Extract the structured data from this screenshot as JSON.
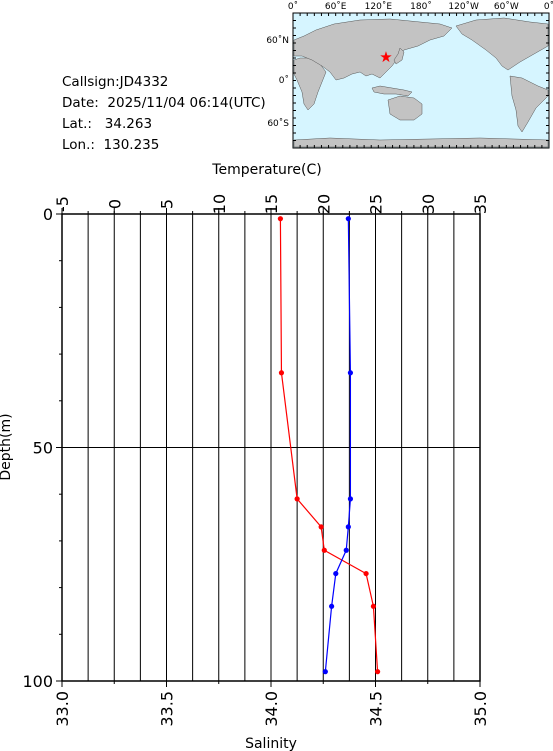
{
  "info": {
    "callsign": "Callsign:JD4332",
    "date": "Date:  2025/11/04 06:14(UTC)",
    "lat": "Lat.:   34.263",
    "lon": "Lon.:  130.235"
  },
  "map": {
    "lon_labels": [
      "0˚",
      "60˚E",
      "120˚E",
      "180˚",
      "120˚W",
      "60˚W",
      "0˚"
    ],
    "lat_labels": [
      "60˚N",
      "0˚",
      "60˚S"
    ],
    "colors": {
      "ocean": "#d6f5ff",
      "land": "#c3c3c3",
      "marker": "#ff0000"
    }
  },
  "chart_data": {
    "type": "line",
    "xlabel_top": "Temperature(C)",
    "xlabel_bottom": "Salinity",
    "ylabel": "Depth(m)",
    "temp_range": [
      -5,
      35
    ],
    "temp_ticks": [
      "-5",
      "0",
      "5",
      "10",
      "15",
      "20",
      "25",
      "30",
      "35"
    ],
    "sal_range": [
      33.0,
      35.0
    ],
    "sal_ticks": [
      "33.0",
      "33.5",
      "34.0",
      "34.5",
      "35.0"
    ],
    "depth_range": [
      0,
      100
    ],
    "depth_ticks": [
      "0",
      "50",
      "100"
    ],
    "series": [
      {
        "axis": "temperature",
        "color": "#ff0000",
        "points": [
          {
            "depth": 1,
            "value": 15.9
          },
          {
            "depth": 34,
            "value": 16.0
          },
          {
            "depth": 61,
            "value": 17.5
          },
          {
            "depth": 67,
            "value": 19.8
          },
          {
            "depth": 72,
            "value": 20.1
          },
          {
            "depth": 77,
            "value": 24.1
          },
          {
            "depth": 84,
            "value": 24.8
          },
          {
            "depth": 98,
            "value": 25.2
          }
        ]
      },
      {
        "axis": "salinity",
        "color": "#0000ff",
        "points": [
          {
            "depth": 1,
            "value": 34.37
          },
          {
            "depth": 34,
            "value": 34.38
          },
          {
            "depth": 61,
            "value": 34.38
          },
          {
            "depth": 67,
            "value": 34.37
          },
          {
            "depth": 72,
            "value": 34.36
          },
          {
            "depth": 77,
            "value": 34.31
          },
          {
            "depth": 84,
            "value": 34.29
          },
          {
            "depth": 98,
            "value": 34.26
          }
        ]
      }
    ]
  }
}
